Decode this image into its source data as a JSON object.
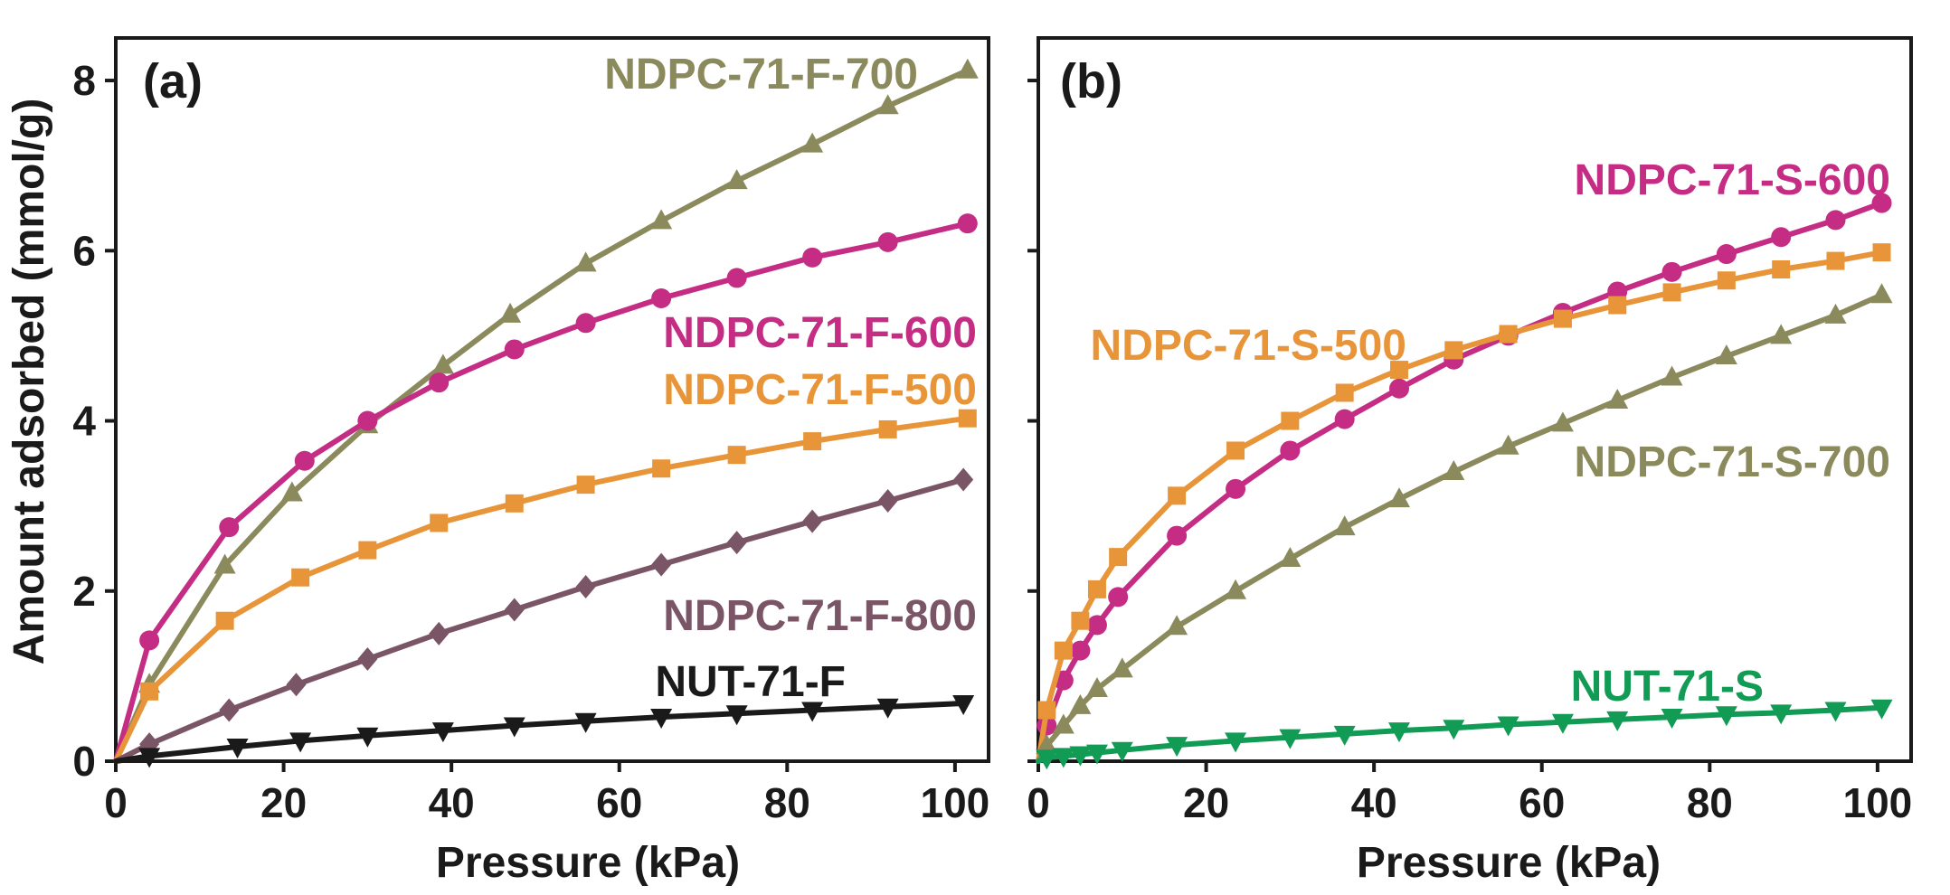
{
  "chart_data": [
    {
      "type": "line",
      "panel_label": "(a)",
      "xlabel": "Pressure (kPa)",
      "ylabel": "Amount adsorbed (mmol/g)",
      "xlim": [
        0,
        104
      ],
      "ylim": [
        0,
        8.5
      ],
      "xticks": [
        0,
        20,
        40,
        60,
        80,
        100
      ],
      "yticks": [
        0,
        2,
        4,
        6,
        8
      ],
      "grid": false,
      "legend": "inline labels",
      "series": [
        {
          "name": "NDPC-71-F-700",
          "color": "#8b8a5c",
          "marker": "triangle-up",
          "x": [
            0,
            4,
            13,
            21,
            30,
            39,
            47,
            56,
            65,
            74,
            83,
            92,
            101.5
          ],
          "y": [
            0,
            0.9,
            2.3,
            3.15,
            3.95,
            4.65,
            5.25,
            5.85,
            6.35,
            6.82,
            7.25,
            7.7,
            8.12
          ]
        },
        {
          "name": "NDPC-71-F-600",
          "color": "#c42d83",
          "marker": "circle",
          "x": [
            0,
            4,
            13.5,
            22.5,
            30,
            38.5,
            47.5,
            56,
            65,
            74,
            83,
            92,
            101.5
          ],
          "y": [
            0,
            1.42,
            2.75,
            3.53,
            4.0,
            4.45,
            4.84,
            5.15,
            5.44,
            5.68,
            5.92,
            6.1,
            6.32
          ]
        },
        {
          "name": "NDPC-71-F-500",
          "color": "#e8953a",
          "marker": "square",
          "x": [
            0,
            4,
            13,
            22,
            30,
            38.5,
            47.5,
            56,
            65,
            74,
            83,
            92,
            101.5
          ],
          "y": [
            0,
            0.82,
            1.65,
            2.16,
            2.48,
            2.8,
            3.03,
            3.25,
            3.44,
            3.6,
            3.76,
            3.9,
            4.03
          ]
        },
        {
          "name": "NDPC-71-F-800",
          "color": "#7a5566",
          "marker": "diamond",
          "x": [
            0,
            4,
            13.5,
            21.5,
            30,
            38.5,
            47.5,
            56,
            65,
            74,
            83,
            92,
            101
          ],
          "y": [
            0,
            0.2,
            0.6,
            0.9,
            1.2,
            1.5,
            1.78,
            2.05,
            2.31,
            2.57,
            2.82,
            3.06,
            3.31
          ]
        },
        {
          "name": "NUT-71-F",
          "color": "#1a1a1a",
          "marker": "triangle-down",
          "x": [
            0,
            4,
            14.5,
            22,
            30,
            39,
            47.5,
            56,
            65,
            74,
            83,
            92,
            101
          ],
          "y": [
            0,
            0.06,
            0.17,
            0.24,
            0.3,
            0.36,
            0.42,
            0.47,
            0.52,
            0.56,
            0.6,
            0.64,
            0.68
          ]
        }
      ]
    },
    {
      "type": "line",
      "panel_label": "(b)",
      "xlabel": "Pressure (kPa)",
      "ylabel": "",
      "xlim": [
        0,
        104
      ],
      "ylim": [
        0,
        8.5
      ],
      "xticks": [
        0,
        20,
        40,
        60,
        80,
        100
      ],
      "yticks": [
        0,
        2,
        4,
        6,
        8
      ],
      "grid": false,
      "legend": "inline labels",
      "series": [
        {
          "name": "NDPC-71-S-600",
          "color": "#c42d83",
          "marker": "circle",
          "x": [
            0,
            1,
            3,
            5,
            7,
            9.5,
            16.5,
            23.5,
            30,
            36.5,
            43,
            49.5,
            56,
            62.5,
            69,
            75.5,
            82,
            88.5,
            95,
            100.5
          ],
          "y": [
            0,
            0.42,
            0.95,
            1.3,
            1.6,
            1.93,
            2.65,
            3.2,
            3.65,
            4.02,
            4.38,
            4.72,
            5.0,
            5.27,
            5.52,
            5.75,
            5.96,
            6.16,
            6.36,
            6.56
          ]
        },
        {
          "name": "NDPC-71-S-500",
          "color": "#e8953a",
          "marker": "square",
          "x": [
            0,
            1,
            3,
            5,
            7,
            9.5,
            16.5,
            23.5,
            30,
            36.5,
            43,
            49.5,
            56,
            62.5,
            69,
            75.5,
            82,
            88.5,
            95,
            100.5
          ],
          "y": [
            0,
            0.6,
            1.3,
            1.65,
            2.02,
            2.4,
            3.12,
            3.65,
            4.0,
            4.33,
            4.6,
            4.83,
            5.02,
            5.2,
            5.36,
            5.51,
            5.65,
            5.78,
            5.88,
            5.98
          ]
        },
        {
          "name": "NDPC-71-S-700",
          "color": "#8b8a5c",
          "marker": "triangle-up",
          "x": [
            0,
            1,
            3,
            5,
            7,
            10,
            16.5,
            23.5,
            30,
            36.5,
            43,
            49.5,
            56,
            62.5,
            69,
            75.5,
            82,
            88.5,
            95,
            100.5
          ],
          "y": [
            0,
            0.18,
            0.42,
            0.65,
            0.85,
            1.08,
            1.58,
            2.0,
            2.38,
            2.75,
            3.08,
            3.4,
            3.7,
            3.97,
            4.24,
            4.51,
            4.76,
            5.0,
            5.24,
            5.48
          ]
        },
        {
          "name": "NUT-71-S",
          "color": "#129b55",
          "marker": "triangle-down",
          "x": [
            0,
            1,
            3,
            5,
            7,
            10,
            16.5,
            23.5,
            30,
            36.5,
            43,
            49.5,
            56,
            62.5,
            69,
            75.5,
            82,
            88.5,
            95,
            100.5
          ],
          "y": [
            0,
            0.04,
            0.06,
            0.08,
            0.1,
            0.13,
            0.19,
            0.24,
            0.28,
            0.32,
            0.36,
            0.39,
            0.43,
            0.46,
            0.49,
            0.52,
            0.55,
            0.57,
            0.6,
            0.63
          ]
        }
      ]
    }
  ]
}
